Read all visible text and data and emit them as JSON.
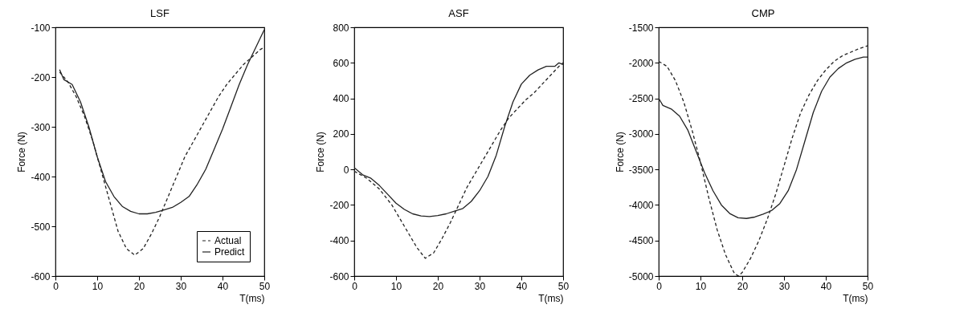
{
  "chart_data": [
    {
      "type": "line",
      "title": "LSF",
      "xlabel": "T(ms)",
      "ylabel": "Force (N)",
      "xlim": [
        0,
        50
      ],
      "xticks": [
        0,
        10,
        20,
        30,
        40,
        50
      ],
      "ylim": [
        -600,
        -100
      ],
      "yticks": [
        -600,
        -500,
        -400,
        -300,
        -200,
        -100
      ],
      "grid": false,
      "legend": "bottom right",
      "series": [
        {
          "name": "Actual",
          "color": "#222222",
          "line_style": "dashed",
          "x": [
            1,
            3,
            5,
            7,
            9,
            11,
            13,
            15,
            17,
            19,
            21,
            23,
            25,
            27,
            29,
            31,
            33,
            35,
            37,
            39,
            41,
            43,
            45,
            47,
            49,
            50
          ],
          "values": [
            -190,
            -210,
            -240,
            -280,
            -330,
            -390,
            -450,
            -510,
            -545,
            -558,
            -545,
            -515,
            -480,
            -440,
            -400,
            -360,
            -330,
            -300,
            -270,
            -240,
            -215,
            -195,
            -175,
            -160,
            -145,
            -140
          ]
        },
        {
          "name": "Predict",
          "color": "#222222",
          "line_style": "solid",
          "x": [
            1,
            2,
            4,
            6,
            8,
            10,
            12,
            14,
            16,
            18,
            20,
            22,
            24,
            26,
            28,
            30,
            32,
            34,
            36,
            38,
            40,
            42,
            44,
            46,
            48,
            50
          ],
          "values": [
            -185,
            -205,
            -215,
            -250,
            -300,
            -360,
            -410,
            -440,
            -460,
            -470,
            -475,
            -475,
            -472,
            -467,
            -462,
            -452,
            -440,
            -415,
            -385,
            -345,
            -305,
            -260,
            -215,
            -175,
            -140,
            -105
          ]
        }
      ]
    },
    {
      "type": "line",
      "title": "ASF",
      "xlabel": "T(ms)",
      "ylabel": "Force (N)",
      "xlim": [
        0,
        50
      ],
      "xticks": [
        0,
        10,
        20,
        30,
        40,
        50
      ],
      "ylim": [
        -600,
        800
      ],
      "yticks": [
        -600,
        -400,
        -200,
        0,
        200,
        400,
        600,
        800
      ],
      "grid": false,
      "series": [
        {
          "color": "#222222",
          "line_style": "dashed",
          "x": [
            0,
            3,
            6,
            9,
            12,
            15,
            17,
            19,
            21,
            23,
            25,
            27,
            29,
            31,
            33,
            35,
            37,
            39,
            41,
            43,
            45,
            47,
            49,
            50
          ],
          "values": [
            -10,
            -50,
            -110,
            -200,
            -320,
            -440,
            -500,
            -470,
            -390,
            -300,
            -200,
            -100,
            -20,
            60,
            140,
            220,
            290,
            340,
            390,
            430,
            480,
            530,
            580,
            600
          ]
        },
        {
          "color": "#222222",
          "line_style": "solid",
          "x": [
            0,
            2,
            4,
            6,
            8,
            10,
            12,
            14,
            16,
            18,
            20,
            22,
            24,
            26,
            28,
            30,
            32,
            34,
            36,
            38,
            40,
            42,
            44,
            46,
            48,
            49,
            50
          ],
          "values": [
            10,
            -30,
            -50,
            -90,
            -140,
            -190,
            -225,
            -250,
            -262,
            -265,
            -260,
            -250,
            -235,
            -220,
            -180,
            -120,
            -40,
            80,
            240,
            380,
            480,
            530,
            560,
            580,
            580,
            600,
            590
          ]
        }
      ]
    },
    {
      "type": "line",
      "title": "CMP",
      "xlabel": "T(ms)",
      "ylabel": "Force (N)",
      "xlim": [
        0,
        50
      ],
      "xticks": [
        0,
        10,
        20,
        30,
        40,
        50
      ],
      "ylim": [
        -5000,
        -1500
      ],
      "yticks": [
        -5000,
        -4500,
        -4000,
        -3500,
        -3000,
        -2500,
        -2000,
        -1500
      ],
      "grid": false,
      "series": [
        {
          "color": "#222222",
          "line_style": "dashed",
          "x": [
            0,
            2,
            4,
            6,
            8,
            10,
            12,
            14,
            16,
            18,
            19,
            20,
            22,
            24,
            26,
            28,
            30,
            32,
            34,
            36,
            38,
            40,
            42,
            44,
            46,
            48,
            50
          ],
          "values": [
            -1980,
            -2050,
            -2250,
            -2550,
            -2950,
            -3400,
            -3900,
            -4350,
            -4700,
            -4950,
            -5000,
            -4950,
            -4750,
            -4500,
            -4200,
            -3850,
            -3450,
            -3050,
            -2700,
            -2450,
            -2250,
            -2100,
            -1980,
            -1900,
            -1850,
            -1800,
            -1760
          ]
        },
        {
          "color": "#222222",
          "line_style": "solid",
          "x": [
            0,
            1,
            3,
            5,
            7,
            9,
            11,
            13,
            15,
            17,
            19,
            21,
            23,
            25,
            27,
            29,
            31,
            33,
            35,
            37,
            39,
            41,
            43,
            45,
            47,
            49,
            50
          ],
          "values": [
            -2500,
            -2600,
            -2650,
            -2750,
            -2950,
            -3250,
            -3550,
            -3800,
            -4000,
            -4120,
            -4180,
            -4190,
            -4170,
            -4130,
            -4080,
            -3980,
            -3800,
            -3500,
            -3100,
            -2700,
            -2400,
            -2200,
            -2080,
            -2000,
            -1950,
            -1920,
            -1920
          ]
        }
      ]
    }
  ]
}
